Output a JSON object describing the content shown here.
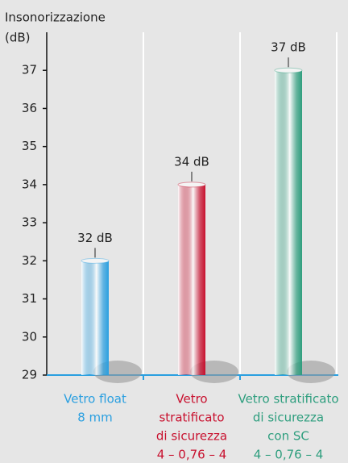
{
  "chart_data": {
    "type": "bar",
    "title": "Insonorizzazione",
    "y_label": "(dB)",
    "categories": [
      [
        "Vetro float",
        "8 mm"
      ],
      [
        "Vetro",
        "stratificato",
        "di sicurezza",
        "4 – 0,76 – 4"
      ],
      [
        "Vetro stratificato",
        "di sicurezza",
        "con SC",
        "4 – 0,76 – 4"
      ]
    ],
    "values": [
      32,
      34,
      37
    ],
    "value_labels": [
      "32 dB",
      "34 dB",
      "37 dB"
    ],
    "colors": [
      "#2a9fe0",
      "#c8102e",
      "#2e9e7e"
    ],
    "ylim": [
      29,
      38
    ],
    "yticks": [
      29,
      30,
      31,
      32,
      33,
      34,
      35,
      36,
      37
    ],
    "grid": false
  }
}
